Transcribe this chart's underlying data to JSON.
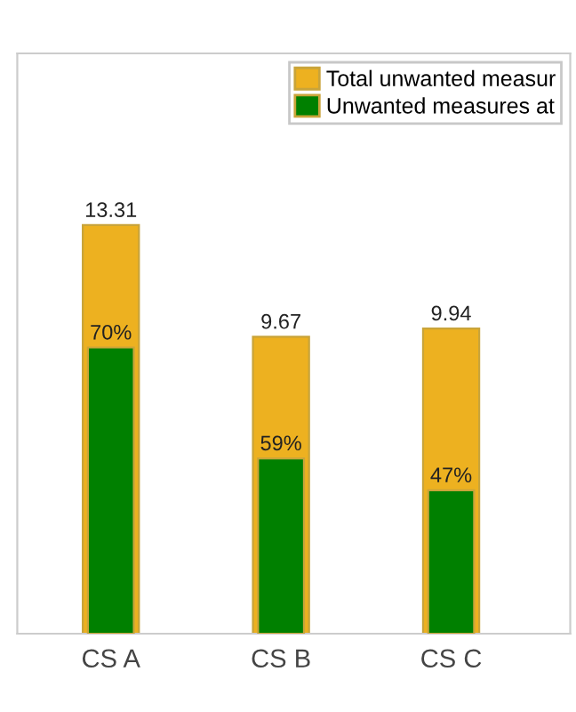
{
  "chart_data": {
    "type": "bar",
    "categories": [
      "CS A",
      "CS B",
      "CS C"
    ],
    "series": [
      {
        "name": "Total unwanted measur",
        "color": "#edb120",
        "values": [
          13.31,
          9.67,
          9.94
        ],
        "value_labels": [
          "13.31",
          "9.67",
          "9.94"
        ]
      },
      {
        "name": "Unwanted measures at",
        "color": "#008000",
        "values": [
          9.32,
          5.71,
          4.67
        ]
      }
    ],
    "annotations": [
      {
        "text": "70%",
        "x": "CS A",
        "y": 9.32
      },
      {
        "text": "59%",
        "x": "CS B",
        "y": 5.71
      },
      {
        "text": "47%",
        "x": "CS C",
        "y": 4.67
      }
    ],
    "legend": "top right",
    "tick_labels": "x"
  }
}
